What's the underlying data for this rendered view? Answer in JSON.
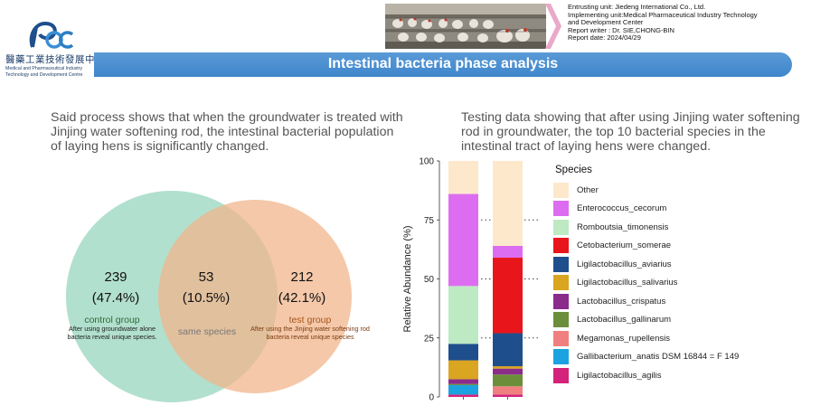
{
  "header": {
    "logo_cn": "醫藥工業技術發展中心",
    "logo_en": [
      "Medical and Pharmaceutical Industry",
      "Technology and Development Centre"
    ],
    "meta": [
      "Entrusting unit: Jiedeng International Co., Ltd.",
      "Implementing unit:Medical Pharmaceutical Industry Technology",
      "and Development Center",
      "Report writer : Dr. SIE,CHONG-BIN",
      "Report date: 2024/04/29"
    ],
    "title": "Intestinal bacteria phase analysis"
  },
  "left": {
    "description": "Said process shows that when the groundwater is treated with Jinjing water softening rod, the intestinal bacterial population of laying hens is significantly changed.",
    "venn": {
      "control": {
        "count": "239",
        "pct": "(47.4%)",
        "label": "control group",
        "note": [
          "After using groundwater alone",
          "bacteria reveal unique species."
        ]
      },
      "shared": {
        "count": "53",
        "pct": "(10.5%)",
        "label": "same species"
      },
      "test": {
        "count": "212",
        "pct": "(42.1%)",
        "label": "test group",
        "note": [
          "After using the Jinjing water softening rod",
          "bacteria reveal unique species"
        ]
      }
    }
  },
  "right": {
    "description": "Testing data showing that after using Jinjing water softening rod in groundwater, the top 10 bacterial species in the intestinal tract of laying hens were changed.",
    "legend_title": "Species"
  },
  "colors": {
    "venn_green": "#9fd8c2",
    "venn_orange": "#f0b68c",
    "title_bar": "#4a8fd0"
  },
  "chart_data": {
    "type": "bar",
    "stacked": true,
    "ylabel": "Relative Abundance (%)",
    "ylim": [
      0,
      100
    ],
    "yticks": [
      "0",
      "25",
      "50",
      "75",
      "100"
    ],
    "categories": [
      "",
      ""
    ],
    "series": [
      {
        "name": "Ligilactobacillus_agilis",
        "color": "#d4237a",
        "values": [
          1,
          1
        ]
      },
      {
        "name": "Gallibacterium_anatis DSM 16844 = F 149",
        "color": "#1aa3e0",
        "values": [
          4,
          0
        ]
      },
      {
        "name": "Megamonas_rupellensis",
        "color": "#f08080",
        "values": [
          0,
          3.5
        ]
      },
      {
        "name": "Lactobacillus_gallinarum",
        "color": "#6b8e3a",
        "values": [
          0.5,
          5
        ]
      },
      {
        "name": "Lactobacillus_crispatus",
        "color": "#8b2c8b",
        "values": [
          2,
          2.5
        ]
      },
      {
        "name": "Ligilactobacillus_salivarius",
        "color": "#daa520",
        "values": [
          8,
          1
        ]
      },
      {
        "name": "Ligilactobacillus_aviarius",
        "color": "#1f4e8c",
        "values": [
          7,
          14
        ]
      },
      {
        "name": "Cetobacterium_somerae",
        "color": "#e8161b",
        "values": [
          0,
          32
        ]
      },
      {
        "name": "Romboutsia_timonensis",
        "color": "#bde9c3",
        "values": [
          24.5,
          0
        ]
      },
      {
        "name": "Enterococcus_cecorum",
        "color": "#dd6df0",
        "values": [
          39,
          5
        ]
      },
      {
        "name": "Other",
        "color": "#fde8cc",
        "values": [
          14,
          36
        ]
      }
    ]
  }
}
